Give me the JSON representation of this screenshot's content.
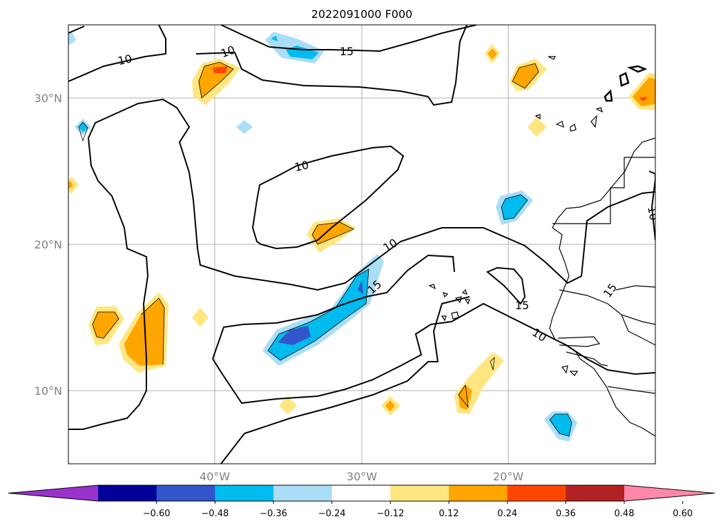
{
  "title": "2022091000 F000",
  "lat_ticks": [
    "30°N",
    "20°N",
    "10°N"
  ],
  "lon_ticks": [
    "40°W",
    "30°W",
    "20°W"
  ],
  "contour_labels": [
    "10",
    "15",
    "10",
    "10",
    "15",
    "10",
    "15",
    "10",
    "15",
    "10"
  ],
  "colorbar": {
    "ticks": [
      "−0.60",
      "−0.48",
      "−0.36",
      "−0.24",
      "−0.12",
      "0.12",
      "0.24",
      "0.36",
      "0.48",
      "0.60"
    ],
    "colors": [
      "#9933cc",
      "#000099",
      "#3355cc",
      "#00bbee",
      "#aaddf6",
      "#ffffff",
      "#ffe680",
      "#ffa500",
      "#ff4500",
      "#b22222",
      "#ff88aa"
    ],
    "extend": "both"
  },
  "colors": {
    "contour": "#000000",
    "grid": "#b0b0b0",
    "coast": "#000000",
    "tick_text": "#808080"
  }
}
